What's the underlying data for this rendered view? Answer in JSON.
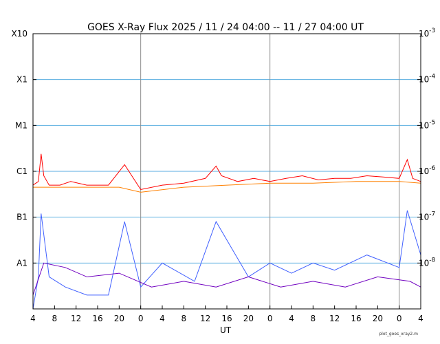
{
  "chart_data": {
    "type": "line",
    "title": "GOES X-Ray Flux   2025 / 11 / 24   04:00 -- 11 / 27   04:00   UT",
    "xlabel": "UT",
    "footer": "plot_goes_xray2.m",
    "x_range_hours_ut": [
      "2025-11-24 04:00",
      "2025-11-27 04:00"
    ],
    "x_tick_labels": [
      "4",
      "8",
      "12",
      "16",
      "20",
      "0",
      "4",
      "8",
      "12",
      "16",
      "20",
      "0",
      "4",
      "8",
      "12",
      "16",
      "20",
      "0",
      "4"
    ],
    "x_tick_times_ut": [
      "2025-11-24 04:00",
      "2025-11-24 08:00",
      "2025-11-24 12:00",
      "2025-11-24 16:00",
      "2025-11-24 20:00",
      "2025-11-25 00:00",
      "2025-11-25 04:00",
      "2025-11-25 08:00",
      "2025-11-25 12:00",
      "2025-11-25 16:00",
      "2025-11-25 20:00",
      "2025-11-26 00:00",
      "2025-11-26 04:00",
      "2025-11-26 08:00",
      "2025-11-26 12:00",
      "2025-11-26 16:00",
      "2025-11-26 20:00",
      "2025-11-27 00:00",
      "2025-11-27 04:00"
    ],
    "y_scale": "log",
    "ylim_w_m2": [
      1e-09,
      0.001
    ],
    "left_axis_labels": [
      "X10",
      "X1",
      "M1",
      "C1",
      "B1",
      "A1"
    ],
    "left_axis_values": [
      0.001,
      0.0001,
      1e-05,
      1e-06,
      1e-07,
      1e-08
    ],
    "right_axis_labels": [
      {
        "base": "10",
        "exp": "-3",
        "value": 0.001
      },
      {
        "base": "10",
        "exp": "-4",
        "value": 0.0001
      },
      {
        "base": "10",
        "exp": "-5",
        "value": 1e-05
      },
      {
        "base": "10",
        "exp": "-6",
        "value": 1e-06
      },
      {
        "base": "10",
        "exp": "-7",
        "value": 1e-07
      },
      {
        "base": "10",
        "exp": "-8",
        "value": 1e-08
      }
    ],
    "horizontal_grid": true,
    "day_boundaries_ut": [
      "2025-11-25 00:00",
      "2025-11-26 00:00",
      "2025-11-27 00:00"
    ],
    "series": [
      {
        "color": "#ff0000",
        "time_ut": [
          "2025-11-24 04:00",
          "2025-11-24 05:00",
          "2025-11-24 05:30",
          "2025-11-24 06:00",
          "2025-11-24 07:00",
          "2025-11-24 09:00",
          "2025-11-24 11:00",
          "2025-11-24 14:00",
          "2025-11-24 18:00",
          "2025-11-24 21:00",
          "2025-11-25 00:00",
          "2025-11-25 04:00",
          "2025-11-25 08:00",
          "2025-11-25 12:00",
          "2025-11-25 14:00",
          "2025-11-25 15:00",
          "2025-11-25 18:00",
          "2025-11-25 21:00",
          "2025-11-26 00:00",
          "2025-11-26 03:00",
          "2025-11-26 06:00",
          "2025-11-26 09:00",
          "2025-11-26 12:00",
          "2025-11-26 15:00",
          "2025-11-26 18:00",
          "2025-11-26 21:00",
          "2025-11-27 00:00",
          "2025-11-27 01:30",
          "2025-11-27 02:30",
          "2025-11-27 04:00"
        ],
        "flux_w_m2": [
          5e-07,
          6e-07,
          2.4e-06,
          8e-07,
          5e-07,
          5e-07,
          6e-07,
          5e-07,
          5e-07,
          1.4e-06,
          4e-07,
          5e-07,
          5.5e-07,
          7e-07,
          1.3e-06,
          8e-07,
          6e-07,
          7e-07,
          6e-07,
          7e-07,
          8e-07,
          6.5e-07,
          7e-07,
          7e-07,
          8e-07,
          7.5e-07,
          7e-07,
          1.8e-06,
          7e-07,
          6e-07
        ]
      },
      {
        "color": "#ff8000",
        "time_ut": [
          "2025-11-24 04:00",
          "2025-11-24 12:00",
          "2025-11-24 20:00",
          "2025-11-25 00:00",
          "2025-11-25 08:00",
          "2025-11-25 16:00",
          "2025-11-26 00:00",
          "2025-11-26 08:00",
          "2025-11-26 16:00",
          "2025-11-27 00:00",
          "2025-11-27 04:00"
        ],
        "flux_w_m2": [
          4.5e-07,
          4.5e-07,
          4.5e-07,
          3.5e-07,
          4.5e-07,
          5e-07,
          5.5e-07,
          5.5e-07,
          6e-07,
          6e-07,
          5.5e-07
        ]
      },
      {
        "color": "#4060ff",
        "time_ut": [
          "2025-11-24 04:00",
          "2025-11-24 05:00",
          "2025-11-24 05:30",
          "2025-11-24 07:00",
          "2025-11-24 10:00",
          "2025-11-24 14:00",
          "2025-11-24 18:00",
          "2025-11-24 21:00",
          "2025-11-25 00:00",
          "2025-11-25 04:00",
          "2025-11-25 10:00",
          "2025-11-25 14:00",
          "2025-11-25 20:00",
          "2025-11-26 00:00",
          "2025-11-26 04:00",
          "2025-11-26 08:00",
          "2025-11-26 12:00",
          "2025-11-26 18:00",
          "2025-11-27 00:00",
          "2025-11-27 01:30",
          "2025-11-27 04:00"
        ],
        "flux_w_m2": [
          1e-09,
          5e-09,
          1.2e-07,
          5e-09,
          3e-09,
          2e-09,
          2e-09,
          8e-08,
          3e-09,
          1e-08,
          4e-09,
          8e-08,
          5e-09,
          1e-08,
          6e-09,
          1e-08,
          7e-09,
          1.5e-08,
          8e-09,
          1.4e-07,
          1.5e-08
        ]
      },
      {
        "color": "#7000c0",
        "time_ut": [
          "2025-11-24 04:00",
          "2025-11-24 06:00",
          "2025-11-24 10:00",
          "2025-11-24 14:00",
          "2025-11-24 20:00",
          "2025-11-25 02:00",
          "2025-11-25 08:00",
          "2025-11-25 14:00",
          "2025-11-25 20:00",
          "2025-11-26 02:00",
          "2025-11-26 08:00",
          "2025-11-26 14:00",
          "2025-11-26 20:00",
          "2025-11-27 02:00",
          "2025-11-27 04:00"
        ],
        "flux_w_m2": [
          2e-09,
          1e-08,
          8e-09,
          5e-09,
          6e-09,
          3e-09,
          4e-09,
          3e-09,
          5e-09,
          3e-09,
          4e-09,
          3e-09,
          5e-09,
          4e-09,
          3e-09
        ]
      }
    ]
  }
}
